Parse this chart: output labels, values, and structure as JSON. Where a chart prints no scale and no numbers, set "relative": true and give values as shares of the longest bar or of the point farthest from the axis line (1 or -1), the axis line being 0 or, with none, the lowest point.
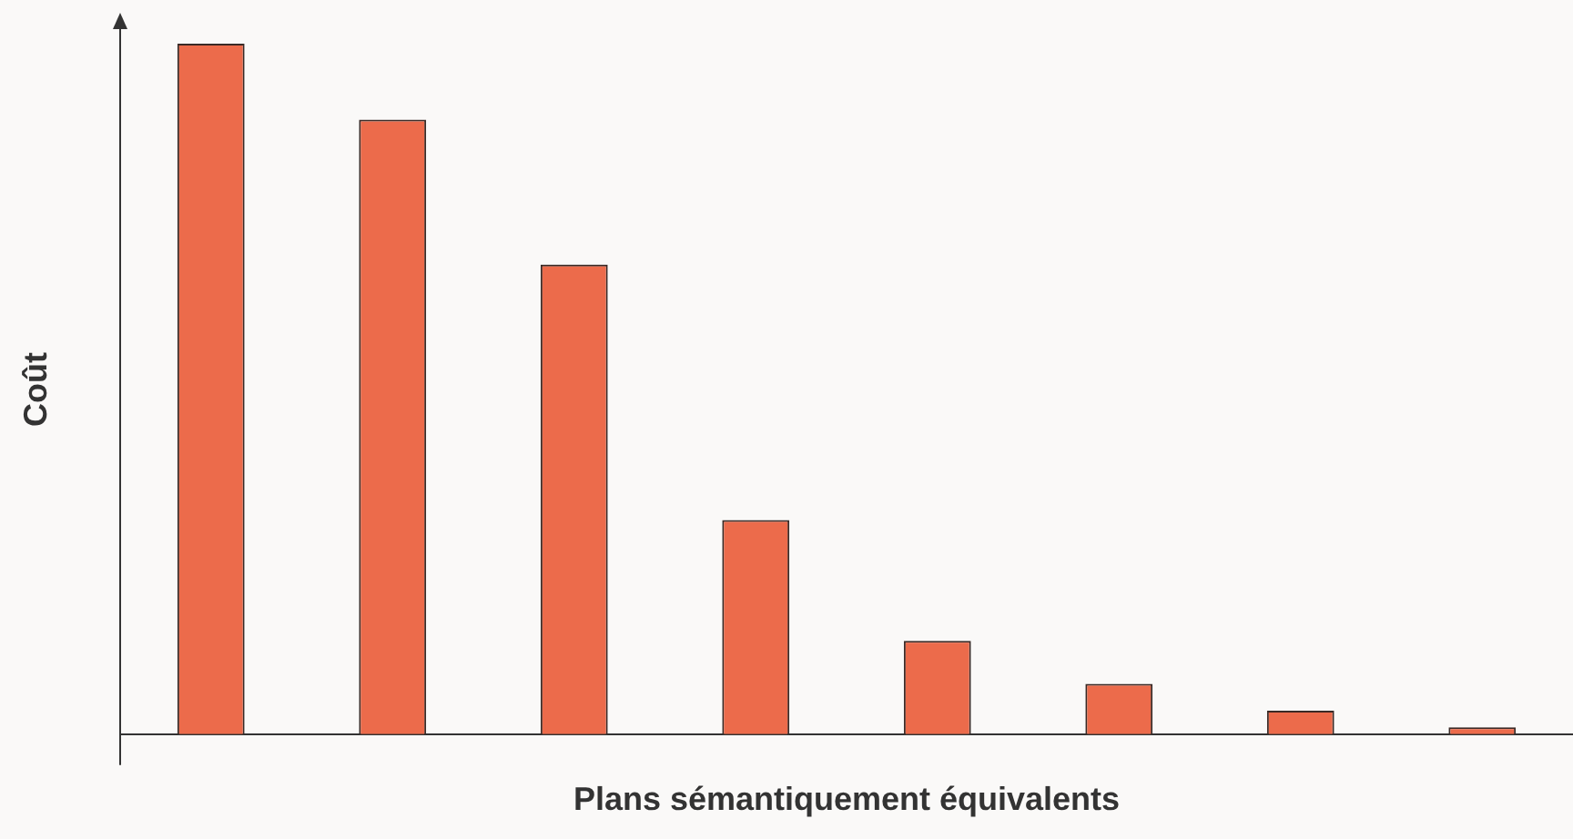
{
  "chart_data": {
    "type": "bar",
    "xlabel": "Plans sémantiquement équivalents",
    "ylabel": "Coût",
    "categories": [
      null,
      null,
      null,
      null,
      null,
      null,
      null,
      null
    ],
    "values": [
      1,
      0.89,
      0.68,
      0.31,
      0.135,
      0.073,
      0.034,
      0.01
    ],
    "color": "#ec6b4b",
    "relative": true,
    "grid": false,
    "legend": false
  }
}
